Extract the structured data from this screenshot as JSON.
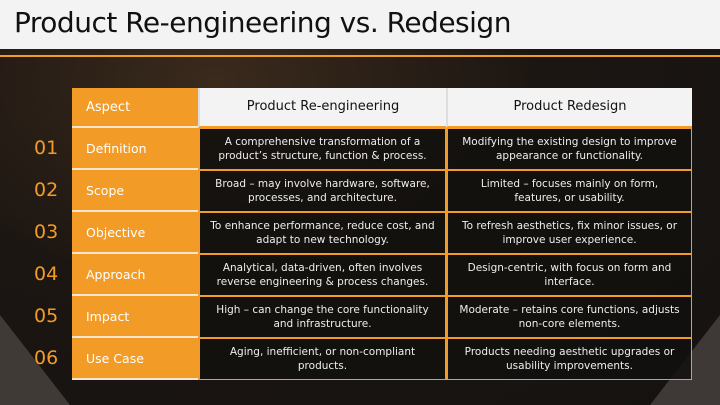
{
  "title": "Product Re-engineering vs. Redesign",
  "header": {
    "aspect": "Aspect",
    "col1": "Product Re-engineering",
    "col2": "Product Redesign"
  },
  "rows": [
    {
      "num": "01",
      "aspect": "Definition",
      "reeng": "A comprehensive transformation of a product’s structure, function & process.",
      "redesign": "Modifying the existing design to improve appearance or functionality."
    },
    {
      "num": "02",
      "aspect": "Scope",
      "reeng": "Broad – may involve hardware, software, processes, and architecture.",
      "redesign": "Limited – focuses mainly on form, features, or usability."
    },
    {
      "num": "03",
      "aspect": "Objective",
      "reeng": "To enhance performance, reduce cost, and adapt to new technology.",
      "redesign": "To refresh aesthetics, fix minor issues, or improve user experience."
    },
    {
      "num": "04",
      "aspect": "Approach",
      "reeng": "Analytical, data-driven, often involves reverse engineering & process changes.",
      "redesign": "Design-centric, with focus on form and interface."
    },
    {
      "num": "05",
      "aspect": "Impact",
      "reeng": "High – can change the core functionality and infrastructure.",
      "redesign": "Moderate – retains core functions, adjusts non-core elements."
    },
    {
      "num": "06",
      "aspect": "Use Case",
      "reeng": "Aging, inefficient, or non-compliant products.",
      "redesign": "Products needing aesthetic upgrades or usability improvements."
    }
  ],
  "colors": {
    "accent": "#f29b26"
  }
}
